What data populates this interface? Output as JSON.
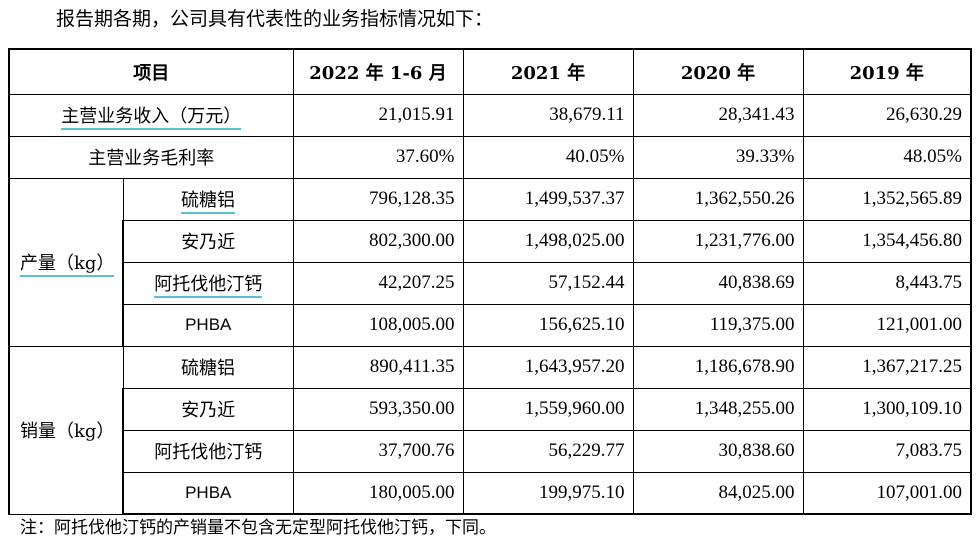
{
  "intro": "报告期各期，公司具有代表性的业务指标情况如下：",
  "headers": [
    "项目",
    "2022 年 1-6 月",
    "2021 年",
    "2020 年",
    "2019 年"
  ],
  "summary_rows": [
    {
      "label": "主营业务收入（万元）",
      "values": [
        "21,015.91",
        "38,679.11",
        "28,341.43",
        "26,630.29"
      ]
    },
    {
      "label": "主营业务毛利率",
      "values": [
        "37.60%",
        "40.05%",
        "39.33%",
        "48.05%"
      ]
    }
  ],
  "groups": [
    {
      "label": "产量（kg）",
      "rows": [
        {
          "product": "硫糖铝",
          "values": [
            "796,128.35",
            "1,499,537.37",
            "1,362,550.26",
            "1,352,565.89"
          ]
        },
        {
          "product": "安乃近",
          "values": [
            "802,300.00",
            "1,498,025.00",
            "1,231,776.00",
            "1,354,456.80"
          ]
        },
        {
          "product": "阿托伐他汀钙",
          "values": [
            "42,207.25",
            "57,152.44",
            "40,838.69",
            "8,443.75"
          ]
        },
        {
          "product": "PHBA",
          "values": [
            "108,005.00",
            "156,625.10",
            "119,375.00",
            "121,001.00"
          ]
        }
      ]
    },
    {
      "label": "销量（kg）",
      "rows": [
        {
          "product": "硫糖铝",
          "values": [
            "890,411.35",
            "1,643,957.20",
            "1,186,678.90",
            "1,367,217.25"
          ]
        },
        {
          "product": "安乃近",
          "values": [
            "593,350.00",
            "1,559,960.00",
            "1,348,255.00",
            "1,300,109.10"
          ]
        },
        {
          "product": "阿托伐他汀钙",
          "values": [
            "37,700.76",
            "56,229.77",
            "30,838.60",
            "7,083.75"
          ]
        },
        {
          "product": "PHBA",
          "values": [
            "180,005.00",
            "199,975.10",
            "84,025.00",
            "107,001.00"
          ]
        }
      ]
    }
  ],
  "note": "注：阿托伐他汀钙的产销量不包含无定型阿托伐他汀钙，下同。"
}
